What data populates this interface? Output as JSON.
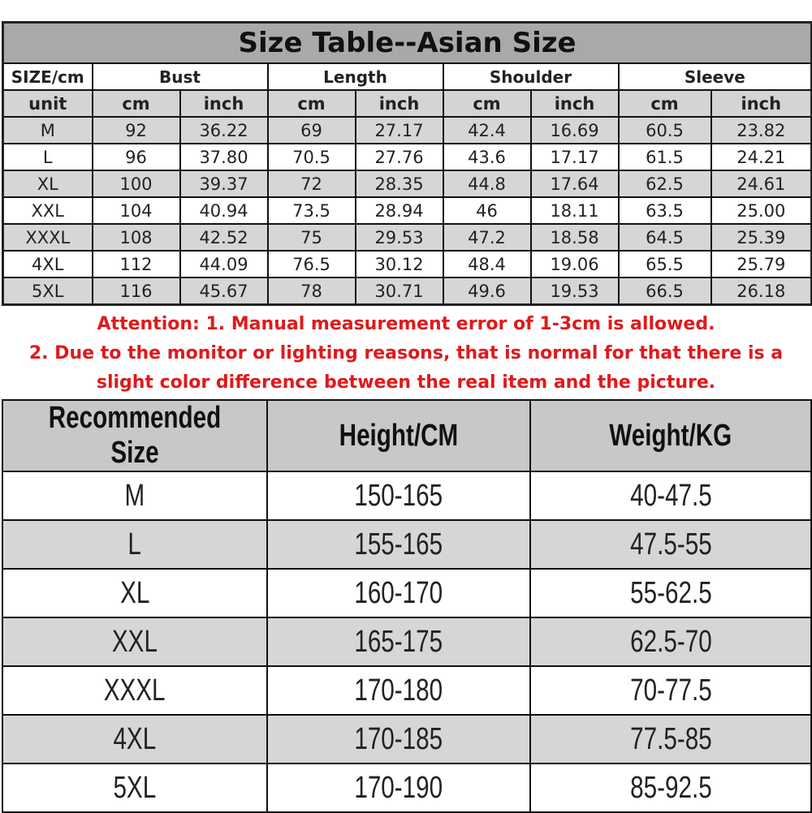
{
  "title": "Size Table--Asian Size",
  "header": {
    "size_label": "SIZE/cm",
    "groups": [
      "Bust",
      "Length",
      "Shoulder",
      "Sleeve"
    ]
  },
  "units": {
    "label": "unit",
    "cols": [
      "cm",
      "inch",
      "cm",
      "inch",
      "cm",
      "inch",
      "cm",
      "inch"
    ]
  },
  "rows": [
    [
      "M",
      "92",
      "36.22",
      "69",
      "27.17",
      "42.4",
      "16.69",
      "60.5",
      "23.82"
    ],
    [
      "L",
      "96",
      "37.80",
      "70.5",
      "27.76",
      "43.6",
      "17.17",
      "61.5",
      "24.21"
    ],
    [
      "XL",
      "100",
      "39.37",
      "72",
      "28.35",
      "44.8",
      "17.64",
      "62.5",
      "24.61"
    ],
    [
      "XXL",
      "104",
      "40.94",
      "73.5",
      "28.94",
      "46",
      "18.11",
      "63.5",
      "25.00"
    ],
    [
      "XXXL",
      "108",
      "42.52",
      "75",
      "29.53",
      "47.2",
      "18.58",
      "64.5",
      "25.39"
    ],
    [
      "4XL",
      "112",
      "44.09",
      "76.5",
      "30.12",
      "48.4",
      "19.06",
      "65.5",
      "25.79"
    ],
    [
      "5XL",
      "116",
      "45.67",
      "78",
      "30.71",
      "49.6",
      "19.53",
      "66.5",
      "26.18"
    ]
  ],
  "attention": [
    "Attention:  1. Manual measurement error of 1-3cm is allowed.",
    "2. Due to the monitor or lighting reasons, that is normal for that there is a",
    "slight color difference between the real item and the picture."
  ],
  "attention_color": "#e0191b",
  "recommend": {
    "headers": [
      "Recommended Size",
      "Height/CM",
      "Weight/KG"
    ],
    "rows": [
      [
        "M",
        "150-165",
        "40-47.5"
      ],
      [
        "L",
        "155-165",
        "47.5-55"
      ],
      [
        "XL",
        "160-170",
        "55-62.5"
      ],
      [
        "XXL",
        "165-175",
        "62.5-70"
      ],
      [
        "XXXL",
        "170-180",
        "70-77.5"
      ],
      [
        "4XL",
        "170-185",
        "77.5-85"
      ],
      [
        "5XL",
        "170-190",
        "85-92.5"
      ]
    ]
  }
}
